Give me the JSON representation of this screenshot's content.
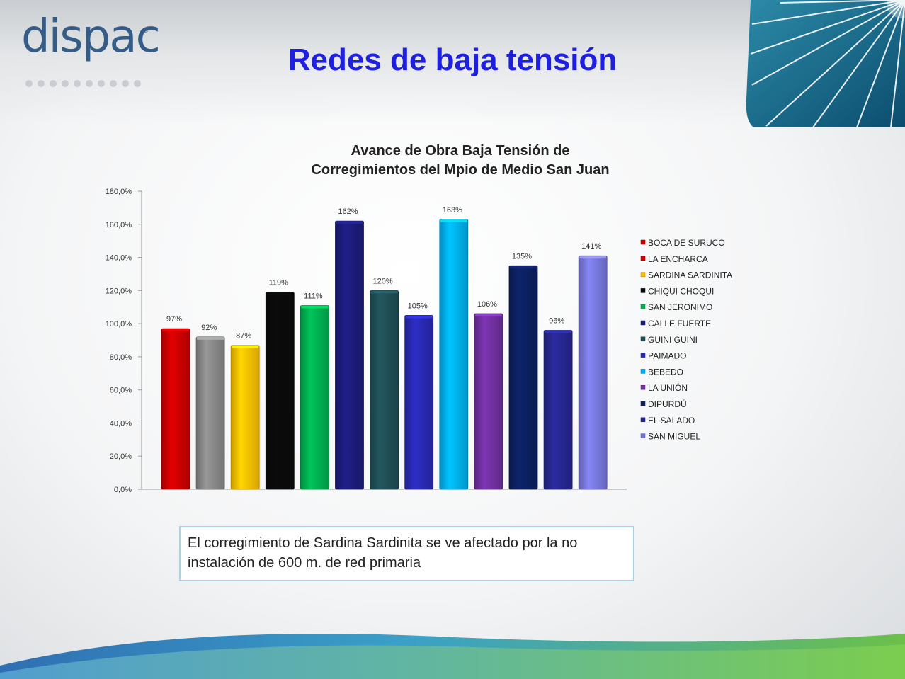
{
  "slide": {
    "title": "Redes de baja tensión",
    "logo_text": "dispac",
    "logo_registered": "®",
    "note": "El corregimiento de Sardina Sardinita se ve afectado por la no instalación de 600 m. de  red primaria"
  },
  "chart_data": {
    "type": "bar",
    "title_line1": "Avance de Obra Baja Tensión de",
    "title_line2": "Corregimientos  del Mpio de Medio San Juan",
    "ylim": [
      0,
      180
    ],
    "yticks": [
      0,
      20,
      40,
      60,
      80,
      100,
      120,
      140,
      160,
      180
    ],
    "ytick_labels": [
      "0,0%",
      "20,0%",
      "40,0%",
      "60,0%",
      "80,0%",
      "100,0%",
      "120,0%",
      "140,0%",
      "160,0%",
      "180,0%"
    ],
    "legend_position": "right",
    "grid": false,
    "categories": [
      "BOCA DE SURUCO",
      "LA ENCHARCA",
      "SARDINA SARDINITA",
      "CHIQUI CHOQUI",
      "SAN JERONIMO",
      "CALLE FUERTE",
      "GUINI GUINI",
      "PAIMADO",
      "BEBEDO",
      "LA UNIÓN",
      "DIPURDÚ",
      "EL SALADO",
      "SAN MIGUEL"
    ],
    "values": [
      97,
      92,
      87,
      119,
      111,
      162,
      120,
      105,
      163,
      106,
      135,
      96,
      141
    ],
    "data_labels": [
      "97%",
      "92%",
      "87%",
      "119%",
      "111%",
      "162%",
      "120%",
      "105%",
      "163%",
      "106%",
      "135%",
      "96%",
      "141%"
    ],
    "colors": [
      "#cc0000",
      "#888888",
      "#ffc000",
      "#0a0a0a",
      "#00b050",
      "#1c1c7a",
      "#1f4e55",
      "#2929b3",
      "#00b0f0",
      "#7030a0",
      "#0c2060",
      "#26268f",
      "#7878dc"
    ],
    "legend_colors": [
      "#cc0000",
      "#cc0000",
      "#ffc000",
      "#0a0a0a",
      "#00b050",
      "#1c1c7a",
      "#1f4e55",
      "#2929b3",
      "#00b0f0",
      "#7030a0",
      "#0c2060",
      "#26268f",
      "#7878dc"
    ]
  }
}
